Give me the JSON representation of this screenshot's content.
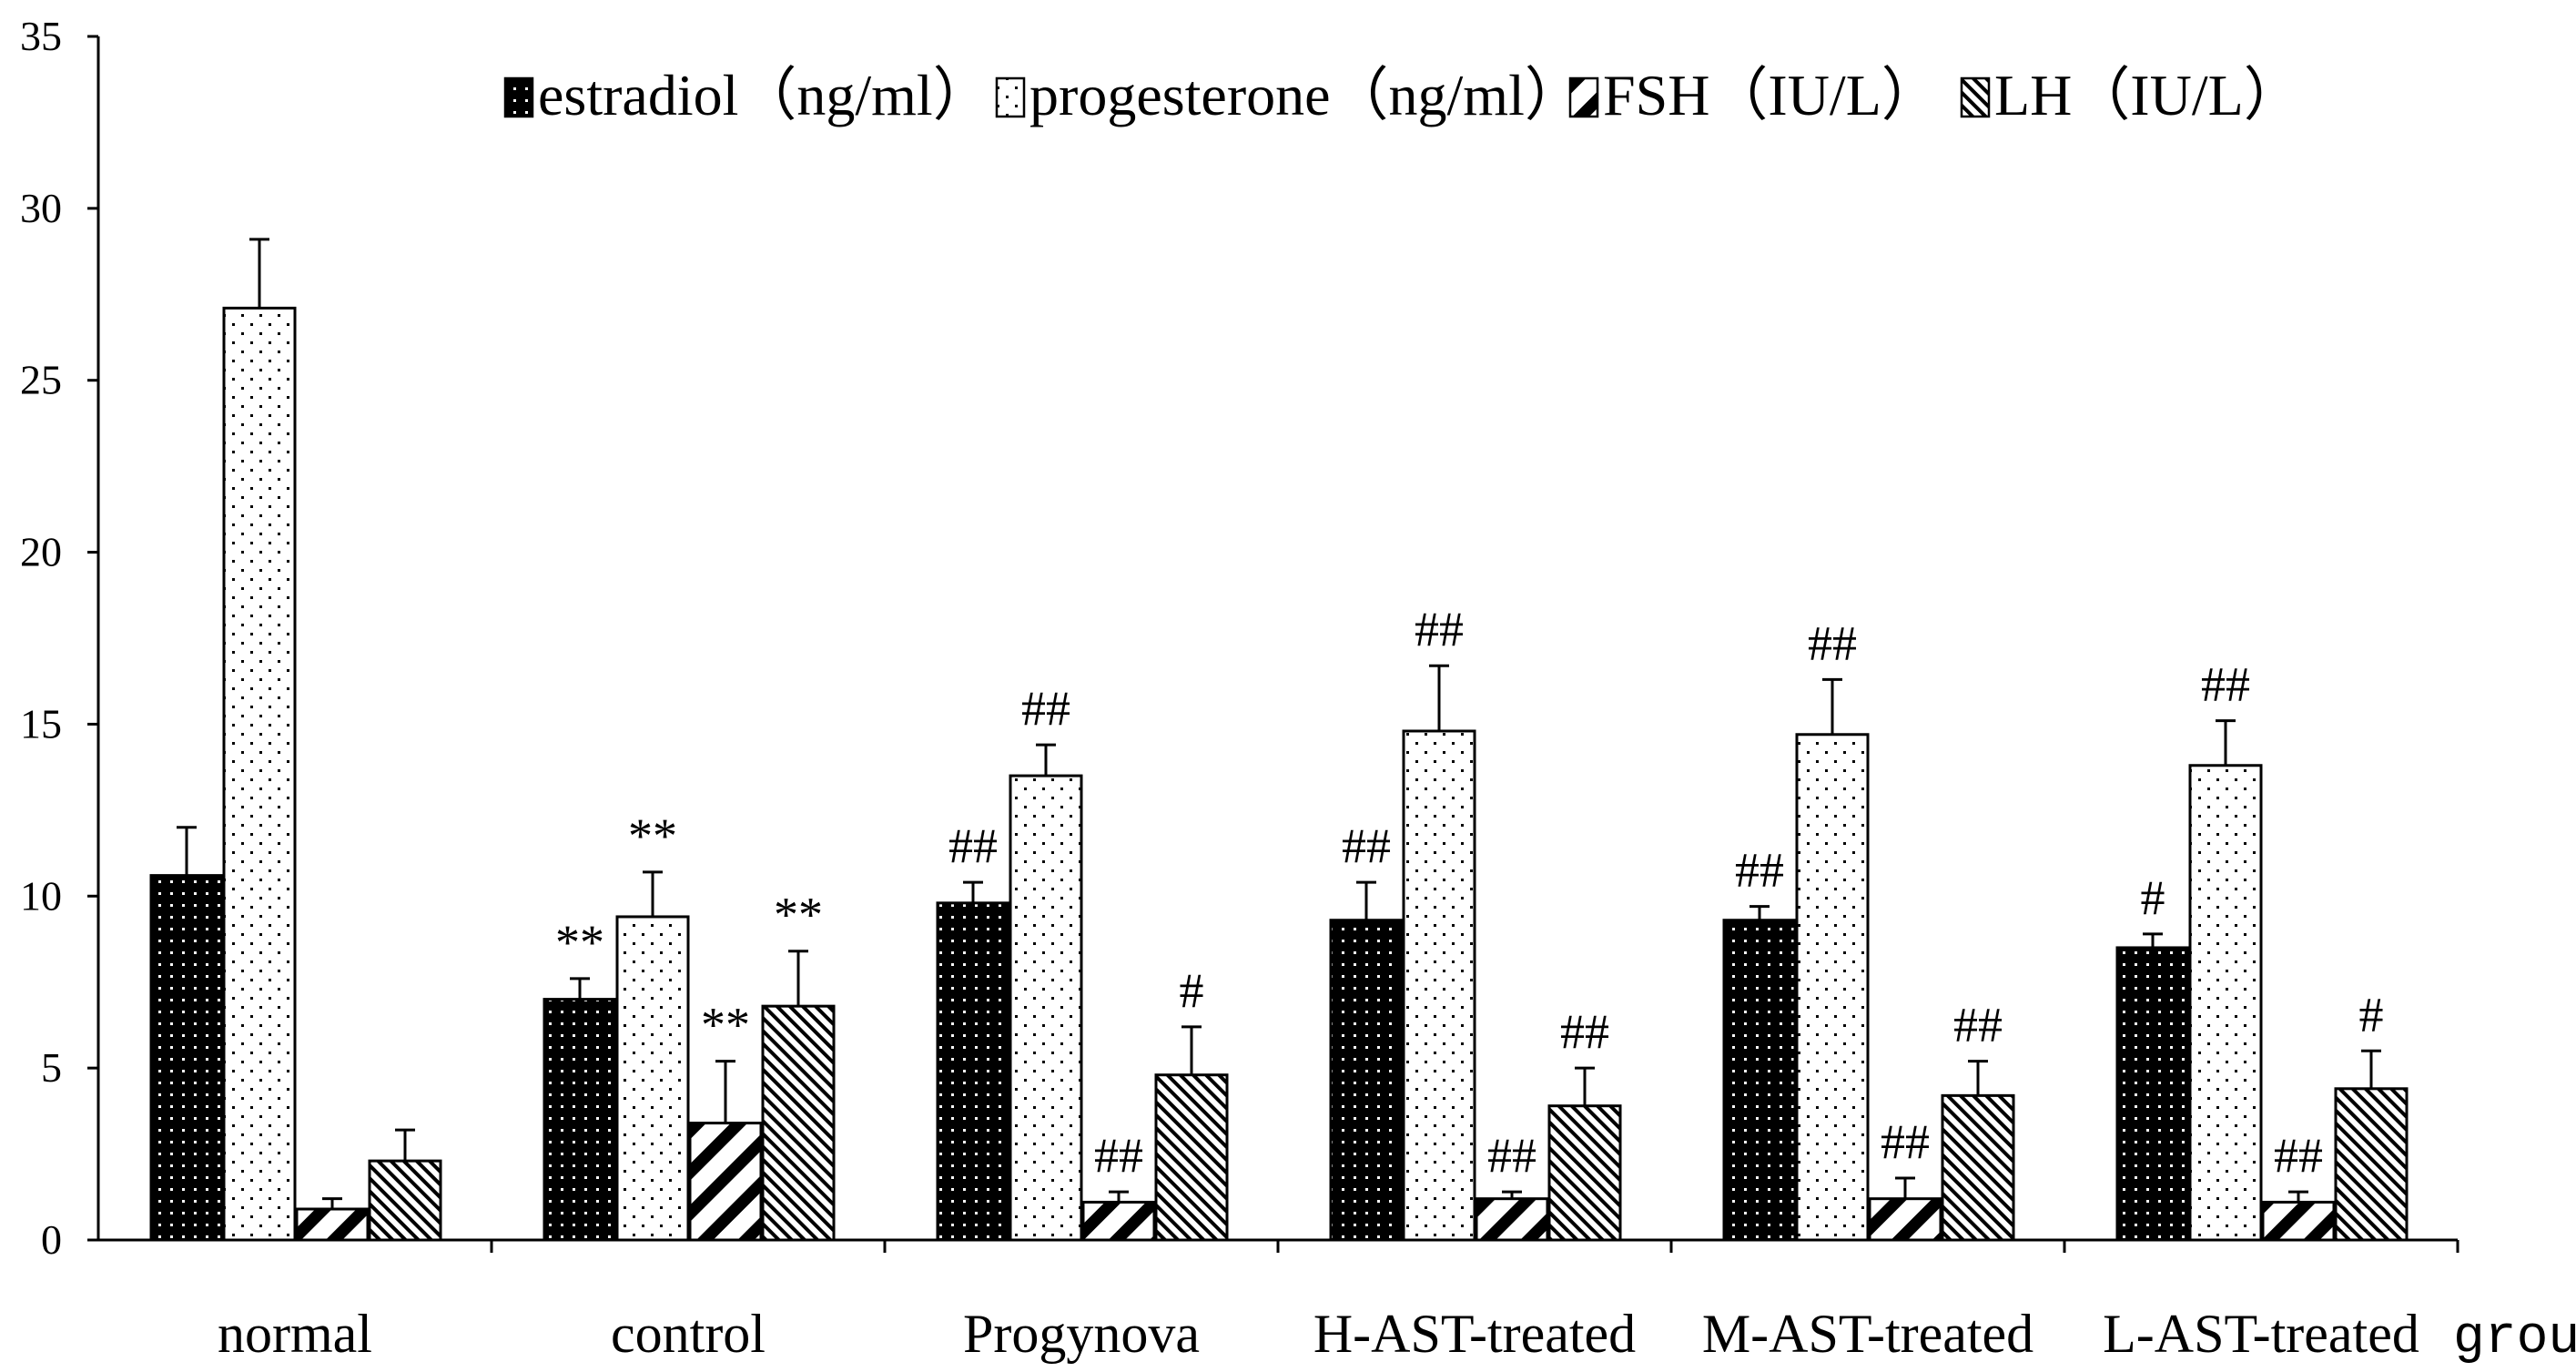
{
  "chart_data": {
    "type": "bar",
    "title": "",
    "xlabel": "group",
    "ylabel": "",
    "ylim": [
      0,
      35
    ],
    "yticks": [
      0,
      5,
      10,
      15,
      20,
      25,
      30,
      35
    ],
    "ytick_labels": [
      "0",
      "5",
      "10",
      "15",
      "20",
      "25",
      "30",
      "35"
    ],
    "grid": false,
    "legend_position": "top",
    "categories": [
      "normal",
      "control",
      "Progynova",
      "H-AST-treated",
      "M-AST-treated",
      "L-AST-treated"
    ],
    "series": [
      {
        "name": "estradiol（ng/ml）",
        "pattern": "dense-dots",
        "values": [
          10.6,
          7.0,
          9.8,
          9.3,
          9.3,
          8.5
        ],
        "errors": [
          1.4,
          0.6,
          0.6,
          1.1,
          0.4,
          0.4
        ],
        "annotations": [
          "",
          "**",
          "##",
          "##",
          "##",
          "#"
        ]
      },
      {
        "name": "progesterone（ng/ml）",
        "pattern": "sparse-dots",
        "values": [
          27.1,
          9.4,
          13.5,
          14.8,
          14.7,
          13.8
        ],
        "errors": [
          2.0,
          1.3,
          0.9,
          1.9,
          1.6,
          1.3
        ],
        "annotations": [
          "",
          "**",
          "##",
          "##",
          "##",
          "##"
        ]
      },
      {
        "name": "FSH（IU/L）",
        "pattern": "wide-diagonal",
        "values": [
          0.9,
          3.4,
          1.1,
          1.2,
          1.2,
          1.1
        ],
        "errors": [
          0.3,
          1.8,
          0.3,
          0.2,
          0.6,
          0.3
        ],
        "annotations": [
          "",
          "**",
          "##",
          "##",
          "##",
          "##"
        ]
      },
      {
        "name": "LH（IU/L）",
        "pattern": "fine-diagonal",
        "values": [
          2.3,
          6.8,
          4.8,
          3.9,
          4.2,
          4.4
        ],
        "errors": [
          0.9,
          1.6,
          1.4,
          1.1,
          1.0,
          1.1
        ],
        "annotations": [
          "",
          "**",
          "#",
          "##",
          "##",
          "#"
        ]
      }
    ]
  }
}
